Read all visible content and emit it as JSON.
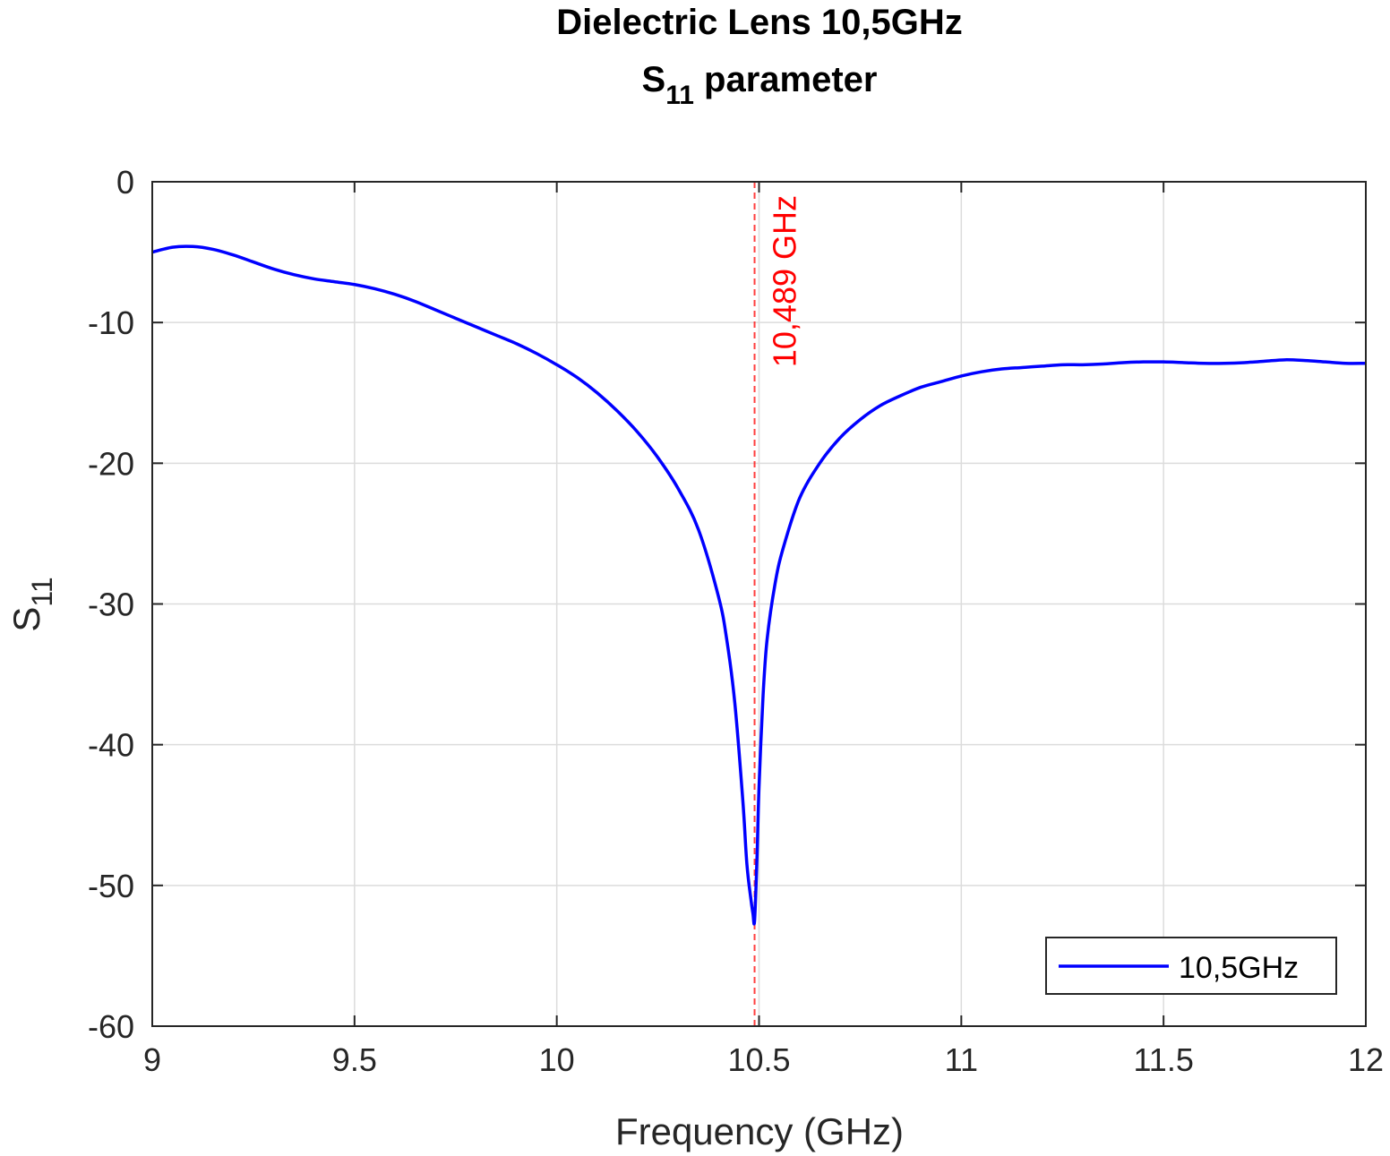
{
  "chart_data": {
    "type": "line",
    "title_line1": "Dielectric Lens 10,5GHz",
    "title_line2_main": "S",
    "title_line2_sub": "11",
    "title_line2_rest": " parameter",
    "xlabel": "Frequency (GHz)",
    "ylabel_main": "S",
    "ylabel_sub": "11",
    "xlim": [
      9,
      12
    ],
    "ylim": [
      -60,
      0
    ],
    "xticks": [
      9,
      9.5,
      10,
      10.5,
      11,
      11.5,
      12
    ],
    "xtick_labels": [
      "9",
      "9.5",
      "10",
      "10.5",
      "11",
      "11.5",
      "12"
    ],
    "yticks": [
      0,
      -10,
      -20,
      -30,
      -40,
      -50,
      -60
    ],
    "ytick_labels": [
      "0",
      "-10",
      "-20",
      "-30",
      "-40",
      "-50",
      "-60"
    ],
    "grid": true,
    "legend_position": "bottom-right",
    "series": [
      {
        "name": "10,5GHz",
        "color": "#0000ff",
        "x": [
          9.0,
          9.05,
          9.1,
          9.15,
          9.2,
          9.25,
          9.3,
          9.35,
          9.4,
          9.45,
          9.5,
          9.55,
          9.6,
          9.65,
          9.7,
          9.75,
          9.8,
          9.85,
          9.9,
          9.95,
          10.0,
          10.05,
          10.1,
          10.15,
          10.2,
          10.25,
          10.3,
          10.35,
          10.4,
          10.42,
          10.44,
          10.46,
          10.47,
          10.48,
          10.485,
          10.489,
          10.495,
          10.5,
          10.51,
          10.52,
          10.54,
          10.56,
          10.6,
          10.65,
          10.7,
          10.75,
          10.8,
          10.85,
          10.9,
          10.95,
          11.0,
          11.05,
          11.1,
          11.15,
          11.2,
          11.25,
          11.3,
          11.35,
          11.4,
          11.45,
          11.5,
          11.55,
          11.6,
          11.65,
          11.7,
          11.75,
          11.8,
          11.85,
          11.9,
          11.95,
          12.0
        ],
        "y": [
          -5.0,
          -4.65,
          -4.6,
          -4.8,
          -5.2,
          -5.7,
          -6.2,
          -6.6,
          -6.9,
          -7.1,
          -7.3,
          -7.6,
          -8.0,
          -8.5,
          -9.1,
          -9.7,
          -10.3,
          -10.9,
          -11.5,
          -12.2,
          -13.0,
          -13.9,
          -15.0,
          -16.3,
          -17.8,
          -19.6,
          -21.8,
          -24.7,
          -29.5,
          -32.5,
          -37.0,
          -44.0,
          -48.5,
          -51.0,
          -52.0,
          -52.5,
          -48.0,
          -43.0,
          -36.5,
          -32.5,
          -28.5,
          -26.0,
          -22.5,
          -20.0,
          -18.2,
          -16.9,
          -15.9,
          -15.2,
          -14.6,
          -14.2,
          -13.8,
          -13.5,
          -13.3,
          -13.2,
          -13.1,
          -13.0,
          -13.0,
          -12.95,
          -12.85,
          -12.8,
          -12.8,
          -12.85,
          -12.9,
          -12.9,
          -12.85,
          -12.75,
          -12.65,
          -12.7,
          -12.8,
          -12.9,
          -12.9
        ]
      }
    ],
    "annotations": [
      {
        "type": "vline",
        "x": 10.489,
        "label": "10,489 GHz",
        "color": "#ff0000",
        "style": "dashed"
      }
    ],
    "colors": {
      "axis": "#262626",
      "grid": "#dcdcdc",
      "series": "#0000ff",
      "marker": "#ff0000"
    }
  }
}
